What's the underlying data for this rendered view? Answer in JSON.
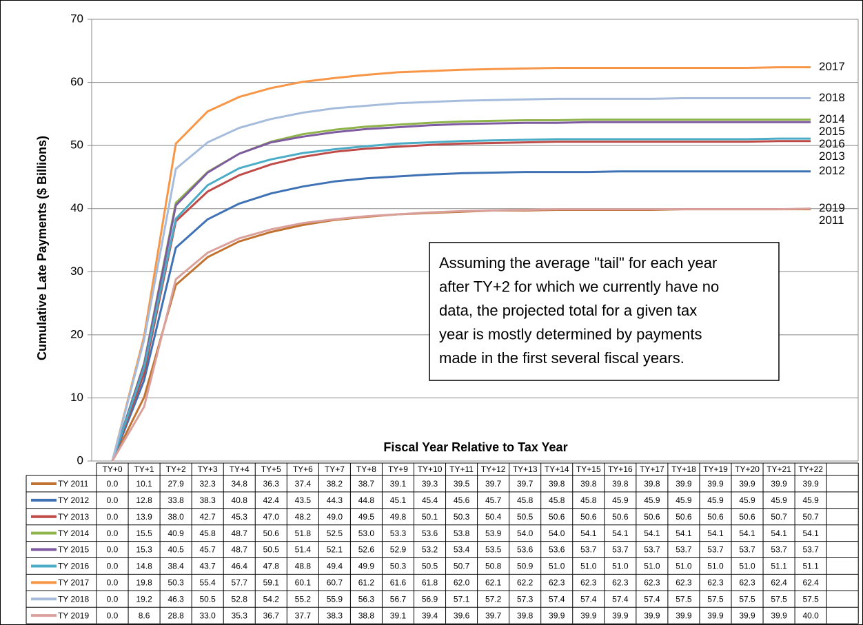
{
  "chart_data": {
    "type": "line",
    "x_label": "Fiscal Year Relative to Tax Year",
    "y_label": "Cumulative Late Payments ($ Billions)",
    "annotation_lines": [
      "Assuming the average \"tail\" for each year",
      "after TY+2 for which we currently have no",
      "data, the projected total for a given tax",
      "year is mostly determined by  payments",
      "made in the first several fiscal years."
    ],
    "categories": [
      "TY+0",
      "TY+1",
      "TY+2",
      "TY+3",
      "TY+4",
      "TY+5",
      "TY+6",
      "TY+7",
      "TY+8",
      "TY+9",
      "TY+10",
      "TY+11",
      "TY+12",
      "TY+13",
      "TY+14",
      "TY+15",
      "TY+16",
      "TY+17",
      "TY+18",
      "TY+19",
      "TY+20",
      "TY+21",
      "TY+22"
    ],
    "ylim": [
      0,
      70
    ],
    "yticks": [
      0,
      10,
      20,
      30,
      40,
      50,
      60,
      70
    ],
    "grid": true,
    "series": [
      {
        "name": "TY 2011",
        "end_label": "2011",
        "color": "#c0722e",
        "values": [
          0.0,
          10.1,
          27.9,
          32.3,
          34.8,
          36.3,
          37.4,
          38.2,
          38.7,
          39.1,
          39.3,
          39.5,
          39.7,
          39.7,
          39.8,
          39.8,
          39.8,
          39.8,
          39.9,
          39.9,
          39.9,
          39.9,
          39.9
        ],
        "value_labels": [
          "0.0",
          "10.1",
          "27.9",
          "32.3",
          "34.8",
          "36.3",
          "37.4",
          "38.2",
          "38.7",
          "39.1",
          "39.3",
          "39.5",
          "39.7",
          "39.7",
          "39.8",
          "39.8",
          "39.8",
          "39.8",
          "39.9",
          "39.9",
          "39.9",
          "39.9",
          "39.9"
        ]
      },
      {
        "name": "TY 2012",
        "end_label": "2012",
        "color": "#3f72b5",
        "values": [
          0.0,
          12.8,
          33.8,
          38.3,
          40.8,
          42.4,
          43.5,
          44.3,
          44.8,
          45.1,
          45.4,
          45.6,
          45.7,
          45.8,
          45.8,
          45.8,
          45.9,
          45.9,
          45.9,
          45.9,
          45.9,
          45.9,
          45.9
        ],
        "value_labels": [
          "0.0",
          "12.8",
          "33.8",
          "38.3",
          "40.8",
          "42.4",
          "43.5",
          "44.3",
          "44.8",
          "45.1",
          "45.4",
          "45.6",
          "45.7",
          "45.8",
          "45.8",
          "45.8",
          "45.9",
          "45.9",
          "45.9",
          "45.9",
          "45.9",
          "45.9",
          "45.9"
        ]
      },
      {
        "name": "TY 2013",
        "end_label": "2013",
        "color": "#be4b48",
        "values": [
          0.0,
          13.9,
          38.0,
          42.7,
          45.3,
          47.0,
          48.2,
          49.0,
          49.5,
          49.8,
          50.1,
          50.3,
          50.4,
          50.5,
          50.6,
          50.6,
          50.6,
          50.6,
          50.6,
          50.6,
          50.6,
          50.7,
          50.7
        ],
        "value_labels": [
          "0.0",
          "13.9",
          "38.0",
          "42.7",
          "45.3",
          "47.0",
          "48.2",
          "49.0",
          "49.5",
          "49.8",
          "50.1",
          "50.3",
          "50.4",
          "50.5",
          "50.6",
          "50.6",
          "50.6",
          "50.6",
          "50.6",
          "50.6",
          "50.6",
          "50.7",
          "50.7"
        ]
      },
      {
        "name": "TY 2014",
        "end_label": "2014",
        "color": "#8db34a",
        "values": [
          0.0,
          15.5,
          40.9,
          45.8,
          48.7,
          50.6,
          51.8,
          52.5,
          53.0,
          53.3,
          53.6,
          53.8,
          53.9,
          54.0,
          54.0,
          54.1,
          54.1,
          54.1,
          54.1,
          54.1,
          54.1,
          54.1,
          54.1
        ],
        "value_labels": [
          "0.0",
          "15.5",
          "40.9",
          "45.8",
          "48.7",
          "50.6",
          "51.8",
          "52.5",
          "53.0",
          "53.3",
          "53.6",
          "53.8",
          "53.9",
          "54.0",
          "54.0",
          "54.1",
          "54.1",
          "54.1",
          "54.1",
          "54.1",
          "54.1",
          "54.1",
          "54.1"
        ]
      },
      {
        "name": "TY 2015",
        "end_label": "2015",
        "color": "#7e5aa1",
        "values": [
          0.0,
          15.3,
          40.5,
          45.7,
          48.7,
          50.5,
          51.4,
          52.1,
          52.6,
          52.9,
          53.2,
          53.4,
          53.5,
          53.6,
          53.6,
          53.7,
          53.7,
          53.7,
          53.7,
          53.7,
          53.7,
          53.7,
          53.7
        ],
        "value_labels": [
          "0.0",
          "15.3",
          "40.5",
          "45.7",
          "48.7",
          "50.5",
          "51.4",
          "52.1",
          "52.6",
          "52.9",
          "53.2",
          "53.4",
          "53.5",
          "53.6",
          "53.6",
          "53.7",
          "53.7",
          "53.7",
          "53.7",
          "53.7",
          "53.7",
          "53.7",
          "53.7"
        ]
      },
      {
        "name": "TY 2016",
        "end_label": "2016",
        "color": "#4aacc6",
        "values": [
          0.0,
          14.8,
          38.4,
          43.7,
          46.4,
          47.8,
          48.8,
          49.4,
          49.9,
          50.3,
          50.5,
          50.7,
          50.8,
          50.9,
          51.0,
          51.0,
          51.0,
          51.0,
          51.0,
          51.0,
          51.0,
          51.1,
          51.1
        ],
        "value_labels": [
          "0.0",
          "14.8",
          "38.4",
          "43.7",
          "46.4",
          "47.8",
          "48.8",
          "49.4",
          "49.9",
          "50.3",
          "50.5",
          "50.7",
          "50.8",
          "50.9",
          "51.0",
          "51.0",
          "51.0",
          "51.0",
          "51.0",
          "51.0",
          "51.0",
          "51.1",
          "51.1"
        ]
      },
      {
        "name": "TY 2017",
        "end_label": "2017",
        "color": "#f79646",
        "values": [
          0.0,
          19.8,
          50.3,
          55.4,
          57.7,
          59.1,
          60.1,
          60.7,
          61.2,
          61.6,
          61.8,
          62.0,
          62.1,
          62.2,
          62.3,
          62.3,
          62.3,
          62.3,
          62.3,
          62.3,
          62.3,
          62.4,
          62.4
        ],
        "value_labels": [
          "0.0",
          "19.8",
          "50.3",
          "55.4",
          "57.7",
          "59.1",
          "60.1",
          "60.7",
          "61.2",
          "61.6",
          "61.8",
          "62.0",
          "62.1",
          "62.2",
          "62.3",
          "62.3",
          "62.3",
          "62.3",
          "62.3",
          "62.3",
          "62.3",
          "62.4",
          "62.4"
        ]
      },
      {
        "name": "TY 2018",
        "end_label": "2018",
        "color": "#a6bcdc",
        "values": [
          0.0,
          19.2,
          46.3,
          50.5,
          52.8,
          54.2,
          55.2,
          55.9,
          56.3,
          56.7,
          56.9,
          57.1,
          57.2,
          57.3,
          57.4,
          57.4,
          57.4,
          57.4,
          57.5,
          57.5,
          57.5,
          57.5,
          57.5
        ],
        "value_labels": [
          "0.0",
          "19.2",
          "46.3",
          "50.5",
          "52.8",
          "54.2",
          "55.2",
          "55.9",
          "56.3",
          "56.7",
          "56.9",
          "57.1",
          "57.2",
          "57.3",
          "57.4",
          "57.4",
          "57.4",
          "57.4",
          "57.5",
          "57.5",
          "57.5",
          "57.5",
          "57.5"
        ]
      },
      {
        "name": "TY 2019",
        "end_label": "2019",
        "color": "#d9a09c",
        "values": [
          0.0,
          8.6,
          28.8,
          33.0,
          35.3,
          36.7,
          37.7,
          38.3,
          38.8,
          39.1,
          39.4,
          39.6,
          39.7,
          39.8,
          39.9,
          39.9,
          39.9,
          39.9,
          39.9,
          39.9,
          39.9,
          39.9,
          40.0
        ],
        "value_labels": [
          "0.0",
          "8.6",
          "28.8",
          "33.0",
          "35.3",
          "36.7",
          "37.7",
          "38.3",
          "38.8",
          "39.1",
          "39.4",
          "39.6",
          "39.7",
          "39.8",
          "39.9",
          "39.9",
          "39.9",
          "39.9",
          "39.9",
          "39.9",
          "39.9",
          "39.9",
          "40.0"
        ]
      }
    ]
  }
}
